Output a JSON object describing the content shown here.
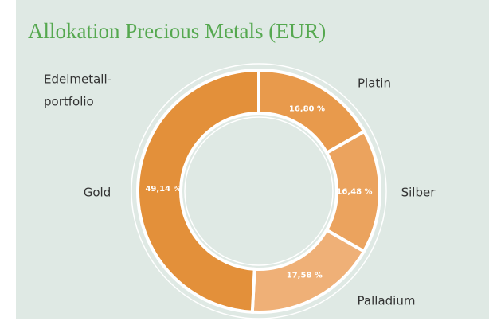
{
  "chart_data": {
    "type": "donut",
    "title": "Allokation Precious Metals (EUR)",
    "subtitle_lines": [
      "Edelmetall-",
      "portfolio"
    ],
    "categories": [
      "Platin",
      "Silber",
      "Palladium",
      "Gold"
    ],
    "values": [
      16.8,
      16.48,
      17.58,
      49.14
    ],
    "value_labels": [
      "16,80 %",
      "16,48 %",
      "17,58 %",
      "49,14 %"
    ],
    "colors": [
      "#e89a4c",
      "#eba35e",
      "#efb077",
      "#e3903a"
    ]
  }
}
